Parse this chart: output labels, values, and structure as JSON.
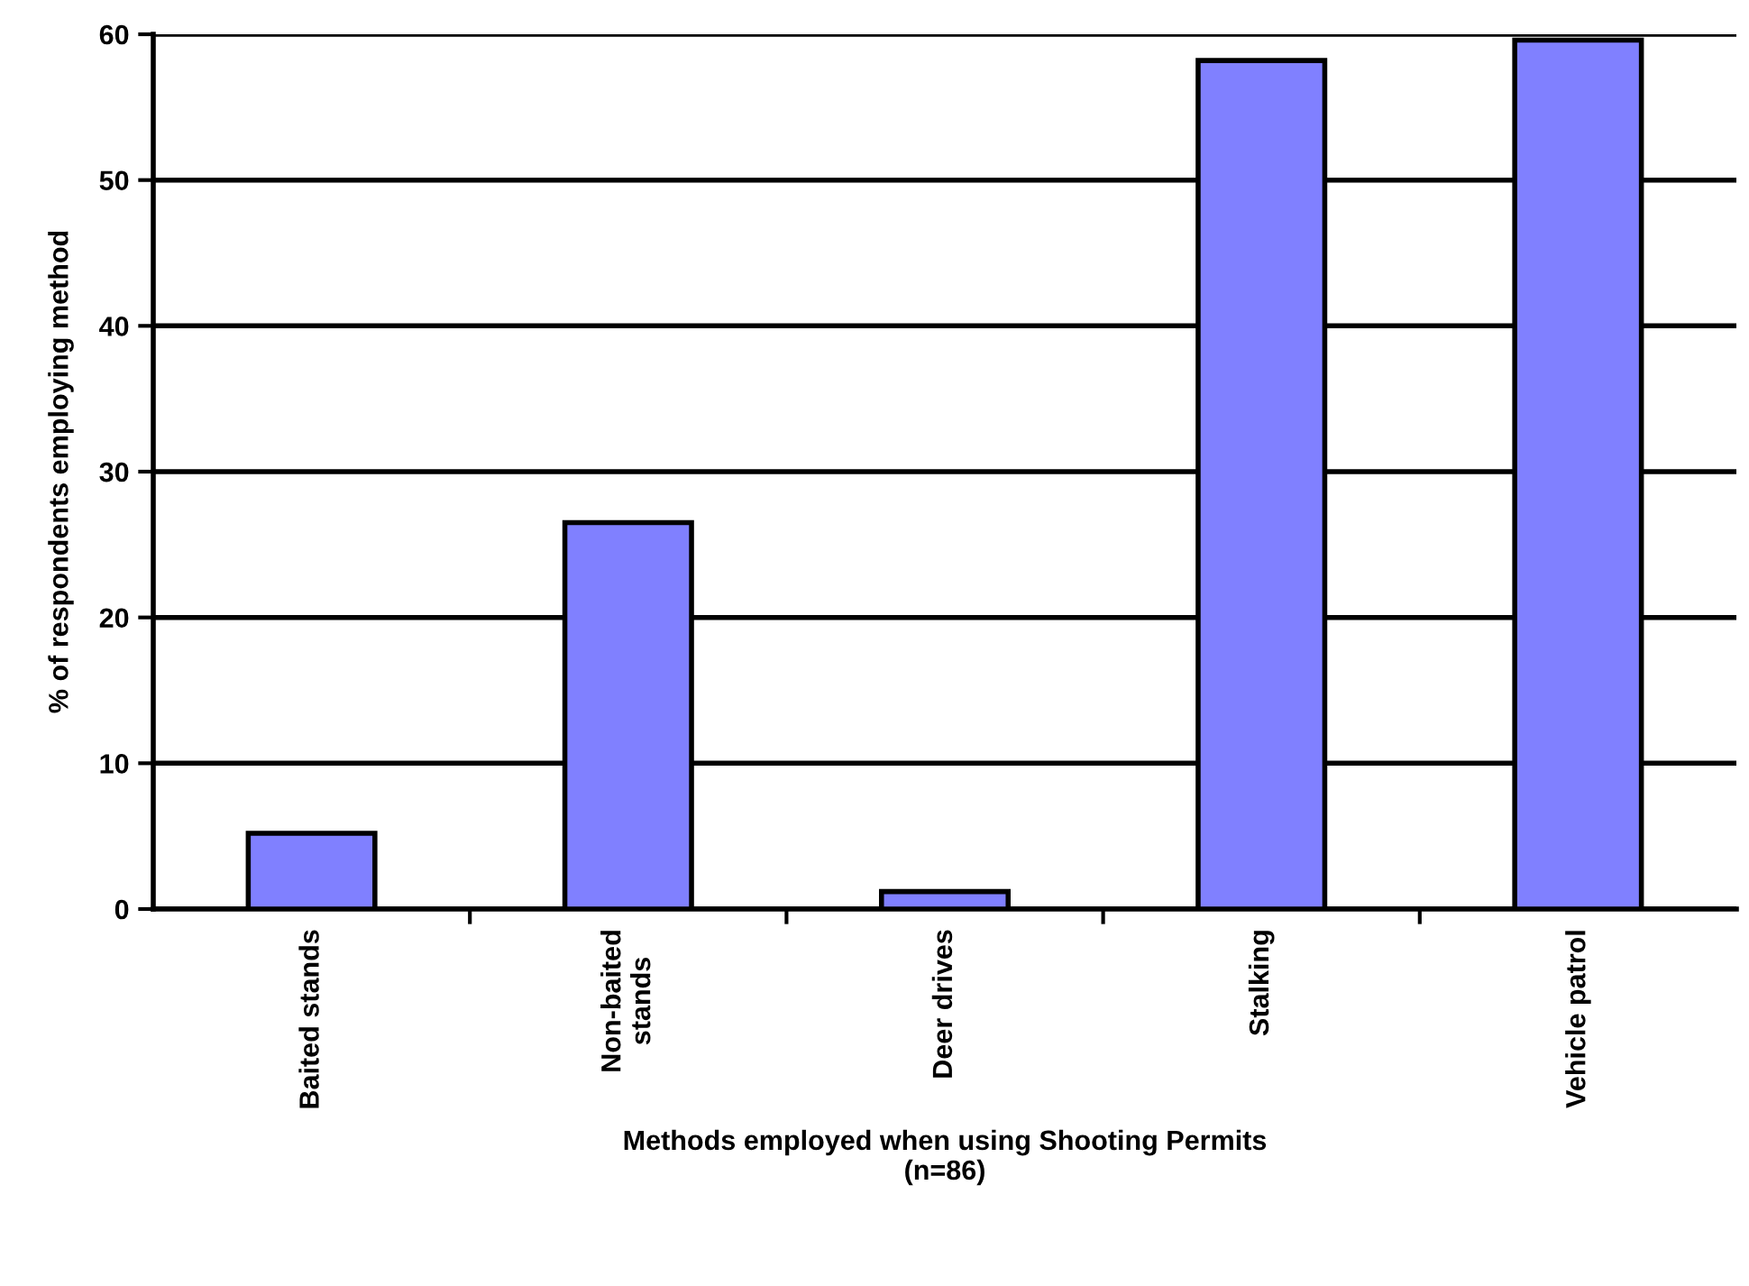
{
  "chart_data": {
    "type": "bar",
    "xlabel": "Methods employed when using Shooting Permits\n(n=86)",
    "ylabel": "% of respondents employing method",
    "categories": [
      "Baited stands",
      "Non-baited\nstands",
      "Deer drives",
      "Stalking",
      "Vehicle patrol"
    ],
    "values": [
      5.2,
      26.5,
      1.2,
      58.2,
      59.6
    ],
    "color": "#8080ff",
    "ylim": [
      0,
      60
    ],
    "yticks": [
      0,
      10,
      20,
      30,
      40,
      50,
      60
    ],
    "grid": "y"
  }
}
